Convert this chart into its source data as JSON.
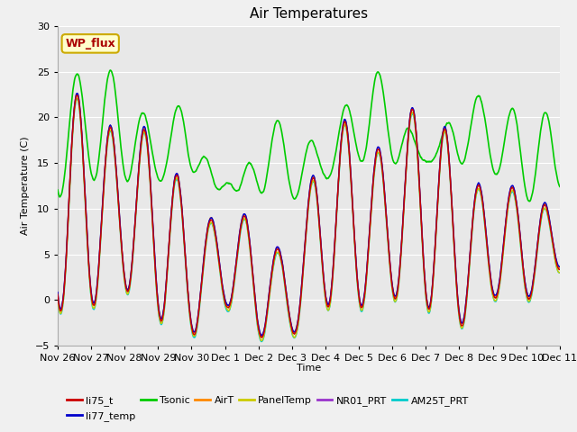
{
  "title": "Air Temperatures",
  "xlabel": "Time",
  "ylabel": "Air Temperature (C)",
  "ylim": [
    -5,
    30
  ],
  "background_color": "#f0f0f0",
  "plot_bg_color": "#e8e8e8",
  "annotation_text": "WP_flux",
  "annotation_bg": "#ffffcc",
  "annotation_border": "#ccaa00",
  "annotation_color": "#aa0000",
  "series": {
    "li75_t": {
      "color": "#cc0000",
      "lw": 1.0
    },
    "li77_temp": {
      "color": "#0000cc",
      "lw": 1.0
    },
    "Tsonic": {
      "color": "#00cc00",
      "lw": 1.2
    },
    "AirT": {
      "color": "#ff8800",
      "lw": 1.0
    },
    "PanelTemp": {
      "color": "#cccc00",
      "lw": 1.0
    },
    "NR01_PRT": {
      "color": "#9933cc",
      "lw": 1.0
    },
    "AM25T_PRT": {
      "color": "#00cccc",
      "lw": 1.0
    }
  },
  "x_tick_labels": [
    "Nov 26",
    "Nov 27",
    "Nov 28",
    "Nov 29",
    "Nov 30",
    "Dec 1",
    "Dec 2",
    "Dec 3",
    "Dec 4",
    "Dec 5",
    "Dec 6",
    "Dec 7",
    "Dec 8",
    "Dec 9",
    "Dec 10",
    "Dec 11"
  ],
  "x_tick_positions": [
    0,
    1,
    2,
    3,
    4,
    5,
    6,
    7,
    8,
    9,
    10,
    11,
    12,
    13,
    14,
    15
  ],
  "yticks": [
    -5,
    0,
    5,
    10,
    15,
    20,
    25,
    30
  ],
  "legend_order": [
    "li75_t",
    "li77_temp",
    "Tsonic",
    "AirT",
    "PanelTemp",
    "NR01_PRT",
    "AM25T_PRT"
  ]
}
